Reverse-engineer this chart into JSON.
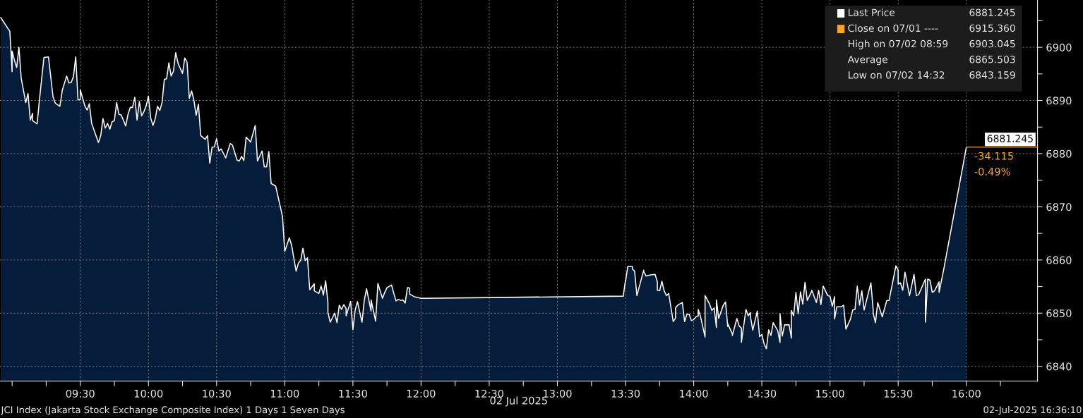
{
  "chart_data": {
    "type": "area",
    "xlabel": "02 Jul 2025",
    "x": [
      "2025-07-02T08:55",
      "2025-07-02T08:59",
      "2025-07-02T09:00",
      "2025-07-02T09:00",
      "2025-07-02T09:01",
      "2025-07-02T09:02",
      "2025-07-02T09:03",
      "2025-07-02T09:04",
      "2025-07-02T09:06",
      "2025-07-02T09:07",
      "2025-07-02T09:08",
      "2025-07-02T09:09",
      "2025-07-02T09:09",
      "2025-07-02T09:11",
      "2025-07-02T09:12",
      "2025-07-02T09:14",
      "2025-07-02T09:16",
      "2025-07-02T09:18",
      "2025-07-02T09:19",
      "2025-07-02T09:21",
      "2025-07-02T09:22",
      "2025-07-02T09:22",
      "2025-07-02T09:24",
      "2025-07-02T09:25",
      "2025-07-02T09:26",
      "2025-07-02T09:27",
      "2025-07-02T09:28",
      "2025-07-02T09:29",
      "2025-07-02T09:30",
      "2025-07-02T09:30",
      "2025-07-02T09:32",
      "2025-07-02T09:33",
      "2025-07-02T09:34",
      "2025-07-02T09:35",
      "2025-07-02T09:38",
      "2025-07-02T09:39",
      "2025-07-02T09:40",
      "2025-07-02T09:41",
      "2025-07-02T09:42",
      "2025-07-02T09:43",
      "2025-07-02T09:44",
      "2025-07-02T09:45",
      "2025-07-02T09:46",
      "2025-07-02T09:47",
      "2025-07-02T09:48",
      "2025-07-02T09:50",
      "2025-07-02T09:51",
      "2025-07-02T09:52",
      "2025-07-02T09:53",
      "2025-07-02T09:54",
      "2025-07-02T09:55",
      "2025-07-02T09:56",
      "2025-07-02T09:57",
      "2025-07-02T09:58",
      "2025-07-02T09:59",
      "2025-07-02T10:00",
      "2025-07-02T10:01",
      "2025-07-02T10:02",
      "2025-07-02T10:03",
      "2025-07-02T10:04",
      "2025-07-02T10:05",
      "2025-07-02T10:06",
      "2025-07-02T10:07",
      "2025-07-02T10:08",
      "2025-07-02T10:09",
      "2025-07-02T10:10",
      "2025-07-02T10:11",
      "2025-07-02T10:12",
      "2025-07-02T10:13",
      "2025-07-02T10:13",
      "2025-07-02T10:15",
      "2025-07-02T10:16",
      "2025-07-02T10:17",
      "2025-07-02T10:18",
      "2025-07-02T10:19",
      "2025-07-02T10:20",
      "2025-07-02T10:21",
      "2025-07-02T10:22",
      "2025-07-02T10:23",
      "2025-07-02T10:25",
      "2025-07-02T10:26",
      "2025-07-02T10:27",
      "2025-07-02T10:28",
      "2025-07-02T10:29",
      "2025-07-02T10:30",
      "2025-07-02T10:31",
      "2025-07-02T10:32",
      "2025-07-02T10:34",
      "2025-07-02T10:36",
      "2025-07-02T10:37",
      "2025-07-02T10:39",
      "2025-07-02T10:40",
      "2025-07-02T10:41",
      "2025-07-02T10:42",
      "2025-07-02T10:43",
      "2025-07-02T10:45",
      "2025-07-02T10:47",
      "2025-07-02T10:48",
      "2025-07-02T10:50",
      "2025-07-02T10:51",
      "2025-07-02T10:52",
      "2025-07-02T10:53",
      "2025-07-02T10:54",
      "2025-07-02T10:56",
      "2025-07-02T10:58",
      "2025-07-02T10:59",
      "2025-07-02T11:00",
      "2025-07-02T11:02",
      "2025-07-02T11:03",
      "2025-07-02T11:05",
      "2025-07-02T11:06",
      "2025-07-02T11:07",
      "2025-07-02T11:08",
      "2025-07-02T11:09",
      "2025-07-02T11:10",
      "2025-07-02T11:11",
      "2025-07-02T11:11",
      "2025-07-02T11:13",
      "2025-07-02T11:13",
      "2025-07-02T11:15",
      "2025-07-02T11:16",
      "2025-07-02T11:17",
      "2025-07-02T11:18",
      "2025-07-02T11:19",
      "2025-07-02T11:19",
      "2025-07-02T11:20",
      "2025-07-02T11:22",
      "2025-07-02T11:23",
      "2025-07-02T11:24",
      "2025-07-02T11:25",
      "2025-07-02T11:26",
      "2025-07-02T11:27",
      "2025-07-02T11:27",
      "2025-07-02T11:29",
      "2025-07-02T11:30",
      "2025-07-02T11:31",
      "2025-07-02T11:32",
      "2025-07-02T11:33",
      "2025-07-02T11:34",
      "2025-07-02T11:35",
      "2025-07-02T11:36",
      "2025-07-02T11:38",
      "2025-07-02T11:38",
      "2025-07-02T11:40",
      "2025-07-02T11:41",
      "2025-07-02T11:43",
      "2025-07-02T11:44",
      "2025-07-02T11:45",
      "2025-07-02T11:47",
      "2025-07-02T11:48",
      "2025-07-02T11:49",
      "2025-07-02T11:50",
      "2025-07-02T11:51",
      "2025-07-02T11:52",
      "2025-07-02T11:53",
      "2025-07-02T11:54",
      "2025-07-02T11:55",
      "2025-07-02T11:55",
      "2025-07-02T11:57",
      "2025-07-02T12:00",
      "2025-07-02T13:29",
      "2025-07-02T13:30",
      "2025-07-02T13:30",
      "2025-07-02T13:31",
      "2025-07-02T13:33",
      "2025-07-02T13:33",
      "2025-07-02T13:34",
      "2025-07-02T13:35",
      "2025-07-02T13:38",
      "2025-07-02T13:38",
      "2025-07-02T13:39",
      "2025-07-02T13:41",
      "2025-07-02T13:43",
      "2025-07-02T13:44",
      "2025-07-02T13:44",
      "2025-07-02T13:45",
      "2025-07-02T13:46",
      "2025-07-02T13:47",
      "2025-07-02T13:48",
      "2025-07-02T13:49",
      "2025-07-02T13:51",
      "2025-07-02T13:52",
      "2025-07-02T13:52",
      "2025-07-02T13:53",
      "2025-07-02T13:55",
      "2025-07-02T13:56",
      "2025-07-02T13:57",
      "2025-07-02T13:58",
      "2025-07-02T13:59",
      "2025-07-02T14:00",
      "2025-07-02T14:01",
      "2025-07-02T14:02",
      "2025-07-02T14:02",
      "2025-07-02T14:03",
      "2025-07-02T14:05",
      "2025-07-02T14:05",
      "2025-07-02T14:07",
      "2025-07-02T14:08",
      "2025-07-02T14:09",
      "2025-07-02T14:10",
      "2025-07-02T14:10",
      "2025-07-02T14:11",
      "2025-07-02T14:13",
      "2025-07-02T14:14",
      "2025-07-02T14:15",
      "2025-07-02T14:15",
      "2025-07-02T14:17",
      "2025-07-02T14:17",
      "2025-07-02T14:19",
      "2025-07-02T14:20",
      "2025-07-02T14:21",
      "2025-07-02T14:21",
      "2025-07-02T14:23",
      "2025-07-02T14:24",
      "2025-07-02T14:25",
      "2025-07-02T14:25",
      "2025-07-02T14:26",
      "2025-07-02T14:28",
      "2025-07-02T14:29",
      "2025-07-02T14:30",
      "2025-07-02T14:31",
      "2025-07-02T14:32",
      "2025-07-02T14:33",
      "2025-07-02T14:34",
      "2025-07-02T14:35",
      "2025-07-02T14:37",
      "2025-07-02T14:38",
      "2025-07-02T14:38",
      "2025-07-02T14:39",
      "2025-07-02T14:40",
      "2025-07-02T14:42",
      "2025-07-02T14:43",
      "2025-07-02T14:43",
      "2025-07-02T14:44",
      "2025-07-02T14:45",
      "2025-07-02T14:46",
      "2025-07-02T14:47",
      "2025-07-02T14:48",
      "2025-07-02T14:49",
      "2025-07-02T14:50",
      "2025-07-02T14:52",
      "2025-07-02T14:52",
      "2025-07-02T14:54",
      "2025-07-02T14:55",
      "2025-07-02T14:56",
      "2025-07-02T14:57",
      "2025-07-02T14:59",
      "2025-07-02T15:00",
      "2025-07-02T15:01",
      "2025-07-02T15:02",
      "2025-07-02T15:02",
      "2025-07-02T15:03",
      "2025-07-02T15:05",
      "2025-07-02T15:06",
      "2025-07-02T15:07",
      "2025-07-02T15:09",
      "2025-07-02T15:10",
      "2025-07-02T15:11",
      "2025-07-02T15:12",
      "2025-07-02T15:13",
      "2025-07-02T15:14",
      "2025-07-02T15:15",
      "2025-07-02T15:18",
      "2025-07-02T15:19",
      "2025-07-02T15:19",
      "2025-07-02T15:20",
      "2025-07-02T15:21",
      "2025-07-02T15:23",
      "2025-07-02T15:25",
      "2025-07-02T15:26",
      "2025-07-02T15:29",
      "2025-07-02T15:30",
      "2025-07-02T15:30",
      "2025-07-02T15:31",
      "2025-07-02T15:32",
      "2025-07-02T15:33",
      "2025-07-02T15:35",
      "2025-07-02T15:37",
      "2025-07-02T15:38",
      "2025-07-02T15:39",
      "2025-07-02T15:42",
      "2025-07-02T15:42",
      "2025-07-02T15:43",
      "2025-07-02T15:44",
      "2025-07-02T15:45",
      "2025-07-02T15:46",
      "2025-07-02T15:48",
      "2025-07-02T15:48",
      "2025-07-02T15:50",
      "2025-07-02T16:00"
    ],
    "series": [
      {
        "name": "Last Price",
        "color": "#ffffff",
        "values": [
          6905.6,
          6903.0,
          6895.4,
          6899.3,
          6897.6,
          6896.2,
          6900.0,
          6894.2,
          6889.6,
          6891.3,
          6886.3,
          6887.6,
          6886.2,
          6885.6,
          6890.0,
          6898.1,
          6898.2,
          6890.7,
          6889.5,
          6888.9,
          6891.6,
          6891.8,
          6894.6,
          6893.3,
          6893.4,
          6894.5,
          6898.2,
          6890.1,
          6890.2,
          6892.0,
          6889.0,
          6888.2,
          6889.4,
          6885.7,
          6882.1,
          6883.4,
          6886.6,
          6884.8,
          6885.7,
          6884.6,
          6886.0,
          6886.2,
          6889.6,
          6887.4,
          6887.3,
          6885.2,
          6887.4,
          6888.7,
          6888.7,
          6890.6,
          6886.3,
          6889.8,
          6887.1,
          6887.9,
          6889.0,
          6890.8,
          6886.7,
          6885.3,
          6886.6,
          6888.9,
          6888.1,
          6889.6,
          6894.0,
          6894.1,
          6897.1,
          6894.6,
          6895.5,
          6899.0,
          6897.1,
          6897.0,
          6895.1,
          6898.0,
          6897.2,
          6890.4,
          6891.8,
          6890.1,
          6887.2,
          6889.3,
          6883.4,
          6882.7,
          6883.4,
          6878.2,
          6881.2,
          6881.3,
          6882.8,
          6880.5,
          6880.9,
          6879.2,
          6881.9,
          6881.6,
          6878.8,
          6878.6,
          6879.5,
          6878.7,
          6883.1,
          6882.2,
          6885.3,
          6878.6,
          6880.5,
          6877.5,
          6877.5,
          6880.4,
          6874.4,
          6873.9,
          6870.1,
          6868.2,
          6861.6,
          6864.2,
          6862.8,
          6857.9,
          6859.4,
          6859.9,
          6862.2,
          6859.9,
          6860.4,
          6854.4,
          6854.4,
          6855.5,
          6854.2,
          6853.7,
          6855.1,
          6853.4,
          6856.1,
          6852.0,
          6850.2,
          6848.3,
          6850.0,
          6848.2,
          6851.5,
          6850.7,
          6851.6,
          6850.9,
          6849.5,
          6852.2,
          6846.9,
          6850.6,
          6852.2,
          6850.2,
          6848.3,
          6852.4,
          6854.6,
          6850.4,
          6852.5,
          6848.5,
          6855.6,
          6852.8,
          6853.9,
          6854.8,
          6855.3,
          6853.7,
          6852.3,
          6852.6,
          6852.4,
          6852.5,
          6851.9,
          6854.8,
          6854.7,
          6853.6,
          6853.1,
          6852.8,
          6853.2,
          6856.3,
          6856.0,
          6858.8,
          6858.8,
          6858.3,
          6857.9,
          6853.3,
          6858.1,
          6857.8,
          6857.0,
          6857.2,
          6857.3,
          6855.9,
          6854.3,
          6854.2,
          6856.0,
          6854.2,
          6853.3,
          6853.7,
          6848.4,
          6849.1,
          6851.0,
          6851.5,
          6852.0,
          6848.4,
          6849.8,
          6849.8,
          6848.6,
          6848.8,
          6849.3,
          6849.5,
          6850.7,
          6849.4,
          6845.5,
          6853.3,
          6851.7,
          6850.5,
          6851.0,
          6847.3,
          6852.5,
          6849.0,
          6851.5,
          6852.1,
          6847.5,
          6848.0,
          6846.1,
          6845.8,
          6849.0,
          6847.6,
          6847.2,
          6844.5,
          6850.7,
          6849.5,
          6850.1,
          6849.3,
          6846.8,
          6850.4,
          6845.6,
          6846.0,
          6844.2,
          6843.3,
          6846.9,
          6845.8,
          6848.2,
          6846.7,
          6844.5,
          6849.9,
          6845.7,
          6847.8,
          6847.8,
          6845.3,
          6850.5,
          6849.5,
          6853.9,
          6849.9,
          6854.0,
          6851.7,
          6855.8,
          6852.4,
          6854.2,
          6854.3,
          6852.0,
          6854.3,
          6851.6,
          6855.1,
          6853.3,
          6853.2,
          6851.3,
          6853.1,
          6848.9,
          6851.2,
          6851.2,
          6851.5,
          6847.0,
          6848.9,
          6850.6,
          6850.7,
          6855.1,
          6851.5,
          6854.2,
          6850.6,
          6855.7,
          6850.6,
          6850.0,
          6848.2,
          6852.0,
          6849.3,
          6852.4,
          6852.4,
          6858.9,
          6858.1,
          6855.5,
          6855.7,
          6854.3,
          6857.7,
          6853.3,
          6857.3,
          6853.3,
          6853.5,
          6856.4,
          6848.3,
          6856.4,
          6856.2,
          6853.9,
          6854.2,
          6855.9,
          6853.9,
          6858.1,
          6881.2
        ]
      }
    ],
    "xlim": [
      "2025-07-02T08:54:40",
      "2025-07-02T16:31:20"
    ],
    "xticks": [
      {
        "value": "2025-07-02T09:00",
        "label": null
      },
      {
        "value": "2025-07-02T09:15",
        "label": null
      },
      {
        "value": "2025-07-02T09:30",
        "label": "09:30"
      },
      {
        "value": "2025-07-02T09:45",
        "label": null
      },
      {
        "value": "2025-07-02T10:00",
        "label": "10:00"
      },
      {
        "value": "2025-07-02T10:15",
        "label": null
      },
      {
        "value": "2025-07-02T10:30",
        "label": "10:30"
      },
      {
        "value": "2025-07-02T10:45",
        "label": null
      },
      {
        "value": "2025-07-02T11:00",
        "label": "11:00"
      },
      {
        "value": "2025-07-02T11:15",
        "label": null
      },
      {
        "value": "2025-07-02T11:30",
        "label": "11:30"
      },
      {
        "value": "2025-07-02T11:45",
        "label": null
      },
      {
        "value": "2025-07-02T12:00",
        "label": "12:00"
      },
      {
        "value": "2025-07-02T12:15",
        "label": null
      },
      {
        "value": "2025-07-02T12:30",
        "label": "12:30"
      },
      {
        "value": "2025-07-02T12:45",
        "label": null
      },
      {
        "value": "2025-07-02T13:00",
        "label": "13:00"
      },
      {
        "value": "2025-07-02T13:15",
        "label": null
      },
      {
        "value": "2025-07-02T13:30",
        "label": "13:30"
      },
      {
        "value": "2025-07-02T13:45",
        "label": null
      },
      {
        "value": "2025-07-02T14:00",
        "label": "14:00"
      },
      {
        "value": "2025-07-02T14:15",
        "label": null
      },
      {
        "value": "2025-07-02T14:30",
        "label": "14:30"
      },
      {
        "value": "2025-07-02T14:45",
        "label": null
      },
      {
        "value": "2025-07-02T15:00",
        "label": "15:00"
      },
      {
        "value": "2025-07-02T15:15",
        "label": null
      },
      {
        "value": "2025-07-02T15:30",
        "label": "15:30"
      },
      {
        "value": "2025-07-02T15:45",
        "label": null
      },
      {
        "value": "2025-07-02T16:00",
        "label": "16:00"
      },
      {
        "value": "2025-07-02T16:15",
        "label": null
      }
    ],
    "ylim": [
      6837.2,
      6908.9
    ],
    "yticks": [
      6840,
      {
        "value": 6845,
        "label": null
      },
      6850,
      {
        "value": 6855,
        "label": null
      },
      6860,
      {
        "value": 6865,
        "label": null
      },
      6870,
      {
        "value": 6875,
        "label": null
      },
      6880,
      {
        "value": 6885,
        "label": null
      },
      6890,
      {
        "value": 6895,
        "label": null
      },
      6900,
      {
        "value": 6905,
        "label": null
      }
    ],
    "grid": true,
    "legend": "top right",
    "ref_lines": [
      {
        "axis": "y",
        "value": 6881.245,
        "label": "6881.245",
        "color": "#f5a623"
      }
    ],
    "annotations": [
      "6881.245",
      "Close on 07/01 ---- 6915.360",
      "High on 07/02 08:59 6903.045",
      "Average 6865.503",
      "Low on 07/02 14:32 6843.159",
      {
        "text": "-34.115",
        "x": "2025-07-02T16:00",
        "y": 6881.245
      },
      {
        "text": "-0.49%",
        "x": "2025-07-02T16:00",
        "y": 6881.245
      },
      "JCI Index (Jakarta Stock Exchange Composite Index) 1 Days 1 Seven Days",
      "02-Jul-2025 16:36:10"
    ]
  }
}
